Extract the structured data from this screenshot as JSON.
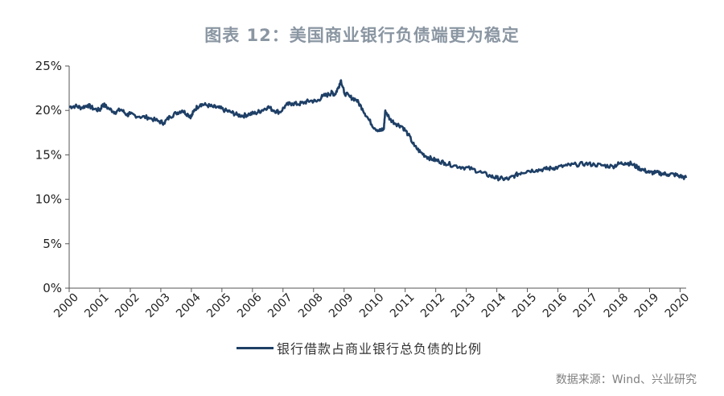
{
  "title": "图表 12：美国商业银行负债端更为稳定",
  "source": "数据来源：Wind、兴业研究",
  "chart_data": {
    "type": "line",
    "title": "图表 12：美国商业银行负债端更为稳定",
    "xlabel": "",
    "ylabel": "",
    "xlim": [
      2000,
      2020.2
    ],
    "ylim": [
      0,
      25
    ],
    "y_ticks": [
      "0%",
      "5%",
      "10%",
      "15%",
      "20%",
      "25%"
    ],
    "x_ticks": [
      "2000",
      "2001",
      "2002",
      "2003",
      "2004",
      "2005",
      "2006",
      "2007",
      "2008",
      "2009",
      "2010",
      "2011",
      "2012",
      "2013",
      "2014",
      "2015",
      "2016",
      "2017",
      "2018",
      "2019",
      "2020"
    ],
    "grid": false,
    "legend_position": "bottom",
    "line_color": "#1e3f66",
    "series": [
      {
        "name": "银行借款占商业银行总负债的比例",
        "x": [
          2000.0,
          2000.2,
          2000.4,
          2000.6,
          2000.8,
          2001.0,
          2001.1,
          2001.3,
          2001.5,
          2001.7,
          2001.9,
          2002.0,
          2002.3,
          2002.6,
          2002.9,
          2003.1,
          2003.3,
          2003.5,
          2003.7,
          2003.9,
          2004.0,
          2004.1,
          2004.3,
          2004.5,
          2004.7,
          2004.9,
          2005.1,
          2005.3,
          2005.5,
          2005.7,
          2005.9,
          2006.1,
          2006.3,
          2006.5,
          2006.7,
          2006.9,
          2007.1,
          2007.3,
          2007.5,
          2007.7,
          2007.9,
          2008.1,
          2008.3,
          2008.5,
          2008.6,
          2008.7,
          2008.8,
          2008.9,
          2009.0,
          2009.2,
          2009.4,
          2009.6,
          2009.8,
          2010.0,
          2010.2,
          2010.3,
          2010.35,
          2010.5,
          2010.7,
          2010.9,
          2011.1,
          2011.3,
          2011.5,
          2011.7,
          2011.9,
          2012.1,
          2012.3,
          2012.6,
          2012.9,
          2013.2,
          2013.5,
          2013.8,
          2014.0,
          2014.2,
          2014.4,
          2014.6,
          2014.8,
          2015.0,
          2015.3,
          2015.6,
          2015.8,
          2016.0,
          2016.3,
          2016.6,
          2016.9,
          2017.2,
          2017.5,
          2017.8,
          2018.0,
          2018.2,
          2018.4,
          2018.6,
          2018.8,
          2019.0,
          2019.2,
          2019.4,
          2019.6,
          2019.8,
          2020.0,
          2020.2
        ],
        "y": [
          20.4,
          20.5,
          20.3,
          20.6,
          20.2,
          20.0,
          20.7,
          20.2,
          19.8,
          20.1,
          19.5,
          19.6,
          19.3,
          19.2,
          18.8,
          18.6,
          19.3,
          19.7,
          20.0,
          19.5,
          19.3,
          20.1,
          20.7,
          20.6,
          20.4,
          20.3,
          20.0,
          19.8,
          19.5,
          19.4,
          19.6,
          19.7,
          20.0,
          20.4,
          20.0,
          19.8,
          20.6,
          20.8,
          20.7,
          20.9,
          21.1,
          21.0,
          21.6,
          21.8,
          22.0,
          21.8,
          22.5,
          23.4,
          22.0,
          21.5,
          21.2,
          20.2,
          19.0,
          18.0,
          17.7,
          17.9,
          20.0,
          19.0,
          18.5,
          18.2,
          17.3,
          16.0,
          15.3,
          14.8,
          14.5,
          14.3,
          14.1,
          13.8,
          13.6,
          13.4,
          13.0,
          12.6,
          12.4,
          12.3,
          12.3,
          12.7,
          13.0,
          13.2,
          13.3,
          13.4,
          13.5,
          13.6,
          13.8,
          13.9,
          14.0,
          13.9,
          13.8,
          13.7,
          14.0,
          14.1,
          14.0,
          13.6,
          13.3,
          13.0,
          13.0,
          12.9,
          12.8,
          12.8,
          12.6,
          12.4
        ]
      }
    ]
  }
}
